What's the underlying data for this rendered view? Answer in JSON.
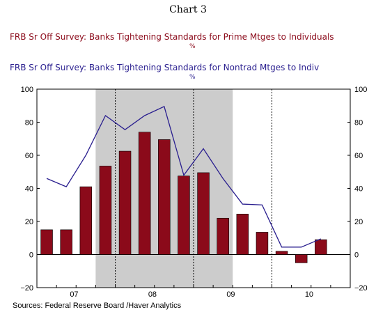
{
  "heading": "Chart 3",
  "title1": "FRB Sr Off Survey: Banks Tightening Standards for Prime Mtges to Individuals",
  "unit1": "%",
  "title2": "FRB Sr Off Survey: Banks Tightening Standards for Nontrad Mtges to Indiv",
  "unit2": "%",
  "source": "Sources:  Federal Reserve Board /Haver Analytics",
  "colors": {
    "bar": "#8b0a1a",
    "line": "#2a1f8f",
    "recession": "#cccccc"
  },
  "chart_data": {
    "type": "bar",
    "periods": [
      "2007Q1",
      "2007Q2",
      "2007Q3",
      "2007Q4",
      "2008Q1",
      "2008Q2",
      "2008Q3",
      "2008Q4",
      "2009Q1",
      "2009Q2",
      "2009Q3",
      "2009Q4",
      "2010Q1",
      "2010Q2",
      "2010Q3",
      "2010Q4"
    ],
    "series": [
      {
        "name": "FRB Sr Off Survey: Banks Tightening Standards for Prime Mtges to Individuals",
        "type": "bar",
        "values": [
          15,
          15,
          41,
          53.5,
          62.5,
          74,
          69.5,
          47.5,
          49.5,
          22,
          24.5,
          13.5,
          2,
          -5,
          9,
          null
        ]
      },
      {
        "name": "FRB Sr Off Survey: Banks Tightening Standards for Nontrad Mtges to Indiv",
        "type": "line",
        "values": [
          46,
          41,
          60,
          84,
          75.5,
          84,
          89.5,
          48,
          64,
          46,
          30.5,
          30,
          4.5,
          4.5,
          9.5,
          null
        ]
      }
    ],
    "recession": [
      "2007Q4",
      "2009Q2"
    ],
    "ylim": [
      -20,
      100
    ],
    "yticks": [
      -20,
      0,
      20,
      40,
      60,
      80,
      100
    ],
    "ytick_labels_left": [
      "−20",
      "0",
      "20",
      "40",
      "60",
      "80",
      "100"
    ],
    "ytick_labels_right": [
      "−20",
      "0",
      "20",
      "40",
      "60",
      "80",
      "100"
    ],
    "x_labels": [
      {
        "text": "07",
        "period": "2007Q2"
      },
      {
        "text": "08",
        "period": "2008Q2"
      },
      {
        "text": "09",
        "period": "2009Q2"
      },
      {
        "text": "10",
        "period": "2010Q2"
      }
    ]
  }
}
